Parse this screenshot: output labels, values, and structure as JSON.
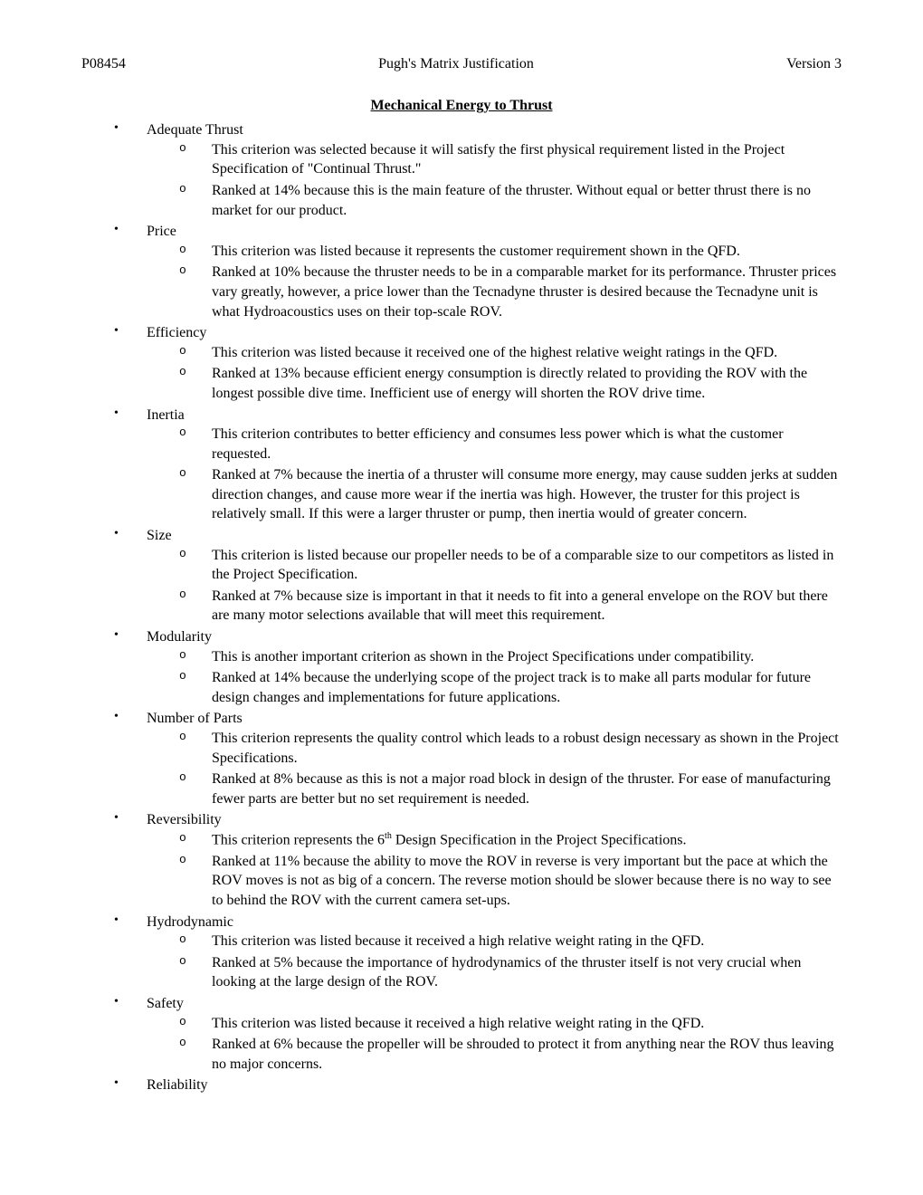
{
  "header": {
    "left": "P08454",
    "center": "Pugh's Matrix Justification",
    "right": "Version 3"
  },
  "section_title": "Mechanical Energy to Thrust",
  "criteria": [
    {
      "name": "Adequate Thrust",
      "points": [
        "This criterion was selected because it will satisfy the first physical requirement listed in the Project Specification of \"Continual Thrust.\"",
        "Ranked at 14% because this is the main feature of the thruster.  Without equal or better thrust there is no market for our product."
      ]
    },
    {
      "name": "Price",
      "points": [
        "This criterion was listed because it represents the customer requirement shown in the QFD.",
        "Ranked at 10% because the thruster needs to be in a comparable market for its performance.  Thruster prices vary greatly, however, a price lower than the Tecnadyne thruster is desired because the Tecnadyne unit is what Hydroacoustics uses on their top-scale ROV."
      ]
    },
    {
      "name": "Efficiency",
      "points": [
        "This criterion was listed because it received one of the highest relative weight ratings in the QFD.",
        "Ranked at 13% because efficient energy consumption is directly related to providing the ROV with the longest possible dive time.  Inefficient use of energy will shorten the ROV drive time."
      ]
    },
    {
      "name": "Inertia",
      "points": [
        "This criterion contributes to better efficiency and consumes less power which is what the customer requested.",
        "Ranked at 7% because the inertia of a thruster will consume more energy, may cause sudden jerks at sudden direction changes, and cause more wear if the inertia was high.  However, the truster for this project is relatively small.  If this were a larger thruster or pump, then inertia would of greater concern."
      ]
    },
    {
      "name": "Size",
      "points": [
        "This criterion is listed because our propeller needs to be of a comparable size to our competitors as listed in the Project Specification.",
        "Ranked at 7% because size is important in that it needs to fit into a general envelope on the ROV but there are many motor selections available that will meet this requirement."
      ]
    },
    {
      "name": "Modularity",
      "points": [
        "This is another important criterion as shown in the Project Specifications under compatibility.",
        "Ranked at 14% because the underlying scope of the project track is to make all parts modular for future design changes and implementations for future applications."
      ]
    },
    {
      "name": "Number of Parts",
      "points": [
        "This criterion represents the quality control which leads to a robust design necessary as shown in the Project Specifications.",
        "Ranked at 8% because as this is not a major road block in design of the thruster.  For ease of manufacturing fewer parts are better but no set requirement is needed."
      ]
    },
    {
      "name": "Reversibility",
      "points": [
        "This criterion represents the 6th Design Specification in the Project Specifications.",
        "Ranked at 11% because the ability to move the ROV in reverse is very important but the pace at which the ROV moves is not as big of a concern.  The reverse motion should be slower because there is no way to see to behind the ROV with the current camera set-ups."
      ]
    },
    {
      "name": "Hydrodynamic",
      "points": [
        "This criterion was listed because it received a high relative weight rating in the QFD.",
        "Ranked at 5% because the importance of hydrodynamics of the thruster itself is not very crucial when looking at the large design of the ROV."
      ]
    },
    {
      "name": "Safety",
      "points": [
        "This criterion was listed because it received a high relative weight rating in the QFD.",
        "Ranked at 6% because the propeller will be shrouded to protect it from anything near the ROV thus leaving no major concerns."
      ]
    },
    {
      "name": "Reliability",
      "points": []
    }
  ],
  "colors": {
    "background": "#ffffff",
    "text": "#000000"
  },
  "typography": {
    "font_family": "Times New Roman",
    "body_fontsize": 16,
    "title_fontsize": 16
  }
}
